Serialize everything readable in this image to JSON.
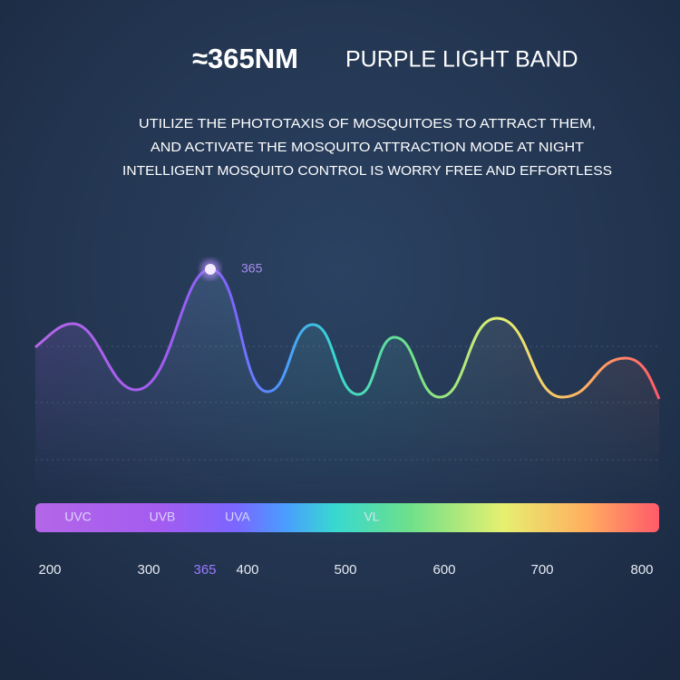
{
  "header": {
    "value": "≈365NM",
    "title": "PURPLE LIGHT BAND"
  },
  "description": [
    "UTILIZE THE PHOTOTAXIS OF MOSQUITOES TO ATTRACT THEM,",
    "AND ACTIVATE THE MOSQUITO ATTRACTION MODE AT NIGHT",
    "INTELLIGENT MOSQUITO CONTROL IS WORRY FREE AND EFFORTLESS"
  ],
  "peak_label": "365",
  "bands": [
    "UVC",
    "UVB",
    "UVA",
    "VL"
  ],
  "axis_labels": [
    "200",
    "300",
    "365",
    "400",
    "500",
    "600",
    "700",
    "800"
  ]
}
